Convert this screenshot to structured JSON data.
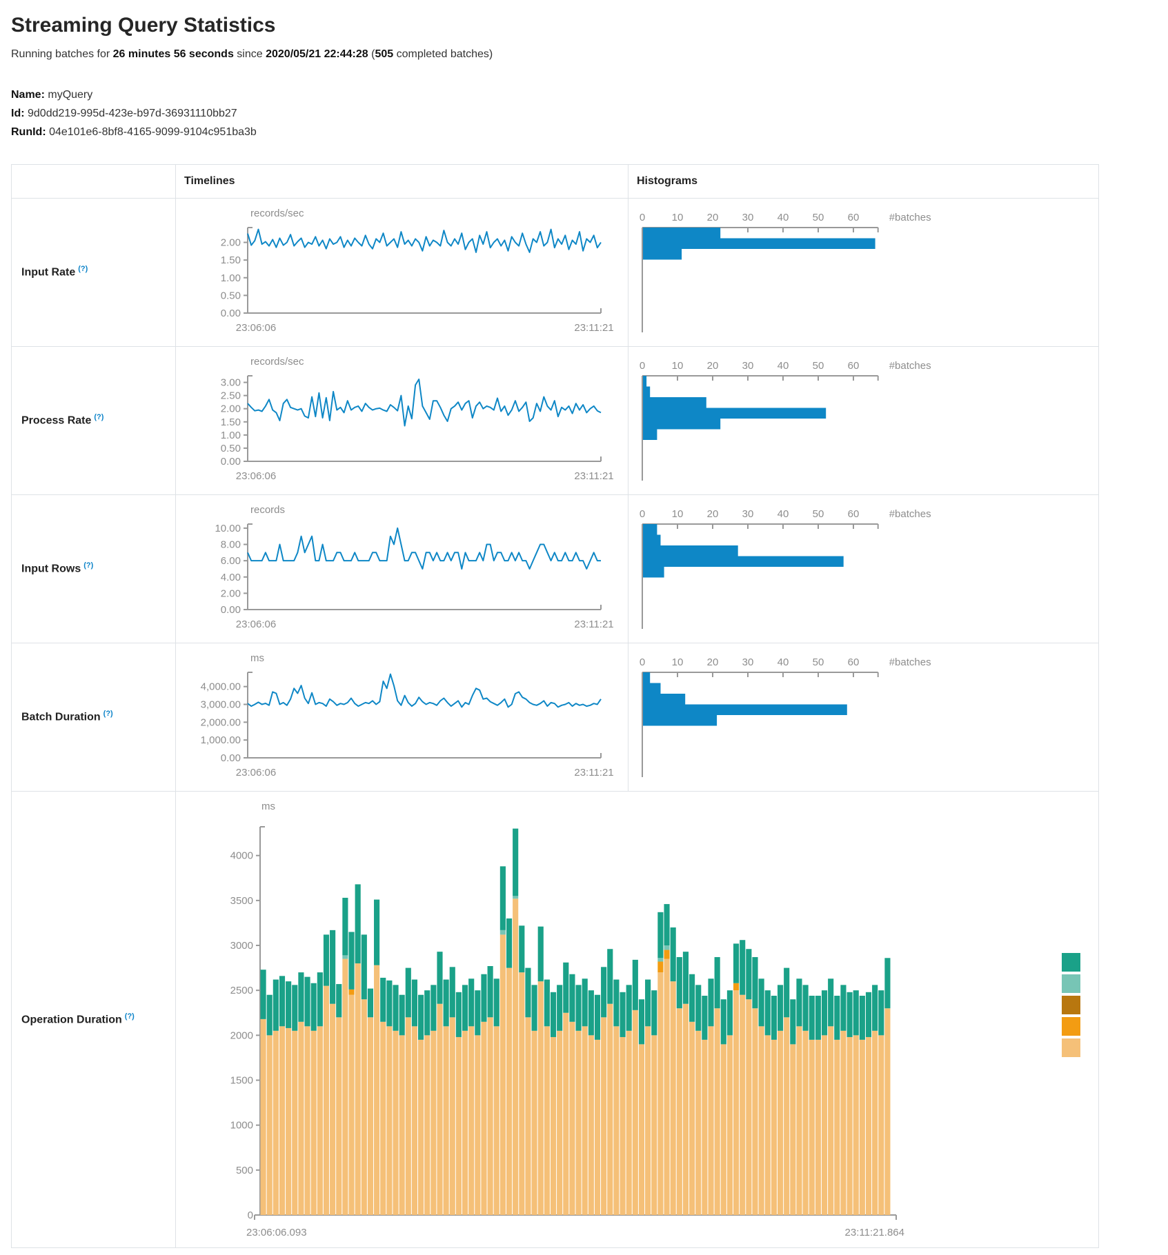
{
  "header": {
    "title": "Streaming Query Statistics",
    "running_prefix": "Running batches for ",
    "duration": "26 minutes 56 seconds",
    "since_text": " since ",
    "start_time": "2020/05/21 22:44:28",
    "paren_open": " (",
    "batches_count": "505",
    "batches_suffix": " completed batches)"
  },
  "meta": {
    "name_label": "Name:",
    "name_value": "myQuery",
    "id_label": "Id:",
    "id_value": "9d0dd219-995d-423e-b97d-36931110bb27",
    "runid_label": "RunId:",
    "runid_value": "04e101e6-8bf8-4165-9099-9104c951ba3b"
  },
  "table": {
    "col_empty": "",
    "col_timelines": "Timelines",
    "col_histograms": "Histograms",
    "help_marker": "(?)"
  },
  "rows": [
    {
      "label": "Input Rate"
    },
    {
      "label": "Process Rate"
    },
    {
      "label": "Input Rows"
    },
    {
      "label": "Batch Duration"
    },
    {
      "label": "Operation Duration"
    }
  ],
  "colors": {
    "blue": "#0e87c6",
    "axis": "#999999",
    "tick_text": "#8d8d8d",
    "teal": "#1aa188",
    "light_teal": "#77c5b5",
    "dark_orange": "#b8770f",
    "orange": "#f39c12",
    "light_orange": "#f5c078",
    "border": "#dee2e6"
  },
  "chart_data": [
    {
      "id": "input-rate-timeline",
      "type": "line",
      "unit": "records/sec",
      "ymax": 2.42,
      "y_ticks": [
        {
          "v": 2,
          "t": "2.00"
        },
        {
          "v": 1.5,
          "t": "1.50"
        },
        {
          "v": 1,
          "t": "1.00"
        },
        {
          "v": 0.5,
          "t": "0.50"
        },
        {
          "v": 0,
          "t": "0.00"
        }
      ],
      "x_labels": [
        "23:06:06",
        "23:11:21"
      ],
      "values": [
        2.25,
        1.92,
        2.05,
        2.37,
        1.95,
        2.02,
        1.9,
        2.08,
        1.86,
        2.12,
        1.92,
        2.0,
        2.22,
        1.9,
        2.02,
        2.12,
        1.86,
        2.0,
        1.95,
        2.16,
        1.9,
        2.06,
        1.82,
        2.1,
        1.95,
        2.0,
        2.16,
        1.86,
        2.06,
        1.9,
        2.12,
        2.0,
        1.9,
        2.2,
        1.95,
        1.82,
        2.1,
        2.0,
        2.26,
        1.9,
        2.0,
        2.1,
        1.86,
        2.3,
        1.95,
        2.06,
        1.9,
        2.1,
        2.0,
        1.76,
        2.16,
        1.9,
        2.06,
        2.0,
        1.9,
        2.34,
        2.0,
        1.9,
        2.1,
        1.95,
        2.26,
        1.8,
        2.0,
        2.1,
        1.72,
        2.2,
        1.95,
        2.3,
        1.85,
        2.0,
        2.1,
        1.9,
        2.06,
        1.76,
        2.16,
        2.0,
        1.9,
        2.26,
        1.95,
        1.72,
        2.1,
        2.0,
        2.3,
        1.9,
        2.0,
        2.37,
        1.85,
        2.1,
        1.95,
        2.2,
        1.8,
        2.06,
        1.95,
        2.3,
        1.76,
        2.1,
        2.0,
        2.2,
        1.85,
        2.0
      ]
    },
    {
      "id": "input-rate-histogram",
      "type": "hbar",
      "xlabel": "#batches",
      "ticks": [
        0,
        10,
        20,
        30,
        40,
        50,
        60
      ],
      "xmax": 67,
      "values": [
        22,
        66,
        11
      ]
    },
    {
      "id": "process-rate-timeline",
      "type": "line",
      "unit": "records/sec",
      "ymax": 3.25,
      "y_ticks": [
        {
          "v": 3,
          "t": "3.00"
        },
        {
          "v": 2.5,
          "t": "2.50"
        },
        {
          "v": 2,
          "t": "2.00"
        },
        {
          "v": 1.5,
          "t": "1.50"
        },
        {
          "v": 1,
          "t": "1.00"
        },
        {
          "v": 0.5,
          "t": "0.50"
        },
        {
          "v": 0,
          "t": "0.00"
        }
      ],
      "x_labels": [
        "23:06:06",
        "23:11:21"
      ],
      "values": [
        2.2,
        2.05,
        1.92,
        1.95,
        1.9,
        2.1,
        2.35,
        1.95,
        1.85,
        1.55,
        2.2,
        2.35,
        2.05,
        2.0,
        1.95,
        2.0,
        1.72,
        1.65,
        2.45,
        1.7,
        2.6,
        1.65,
        2.42,
        1.55,
        2.65,
        1.95,
        2.05,
        1.85,
        2.3,
        1.95,
        2.05,
        2.1,
        1.9,
        2.2,
        2.05,
        1.95,
        2.0,
        2.02,
        1.95,
        1.9,
        2.15,
        2.05,
        1.92,
        2.5,
        1.35,
        2.1,
        1.62,
        2.9,
        3.12,
        2.1,
        1.85,
        1.6,
        2.3,
        2.3,
        2.05,
        1.75,
        1.52,
        2.0,
        2.1,
        2.25,
        1.95,
        2.2,
        2.3,
        1.65,
        2.1,
        2.25,
        2.0,
        2.1,
        2.05,
        1.95,
        2.4,
        1.9,
        2.1,
        1.75,
        1.95,
        2.3,
        1.9,
        2.05,
        2.25,
        1.52,
        1.65,
        2.2,
        1.9,
        2.45,
        2.1,
        1.95,
        2.3,
        1.7,
        2.05,
        1.95,
        2.1,
        1.82,
        2.2,
        1.95,
        2.15,
        1.85,
        2.0,
        2.1,
        1.92,
        1.85
      ]
    },
    {
      "id": "process-rate-histogram",
      "type": "hbar",
      "xlabel": "#batches",
      "ticks": [
        0,
        10,
        20,
        30,
        40,
        50,
        60
      ],
      "xmax": 67,
      "values": [
        1,
        2,
        18,
        52,
        22,
        4
      ]
    },
    {
      "id": "input-rows-timeline",
      "type": "line",
      "unit": "records",
      "ymax": 10.5,
      "y_ticks": [
        {
          "v": 10,
          "t": "10.00"
        },
        {
          "v": 8,
          "t": "8.00"
        },
        {
          "v": 6,
          "t": "6.00"
        },
        {
          "v": 4,
          "t": "4.00"
        },
        {
          "v": 2,
          "t": "2.00"
        },
        {
          "v": 0,
          "t": "0.00"
        }
      ],
      "x_labels": [
        "23:06:06",
        "23:11:21"
      ],
      "values": [
        7,
        6,
        6,
        6,
        6,
        7,
        6,
        6,
        6,
        8,
        6,
        6,
        6,
        6,
        7,
        9,
        7,
        8,
        9,
        6,
        6,
        8,
        6,
        6,
        6,
        7,
        7,
        6,
        6,
        6,
        7,
        6,
        6,
        6,
        6,
        7,
        7,
        6,
        6,
        6,
        9,
        8,
        10,
        8,
        6,
        6,
        7,
        7,
        6,
        5,
        7,
        7,
        6,
        7,
        6,
        6,
        7,
        6,
        7,
        7,
        5,
        7,
        6,
        6,
        6,
        7,
        6,
        8,
        8,
        6,
        7,
        7,
        6,
        6,
        7,
        6,
        7,
        6,
        6,
        5,
        6,
        7,
        8,
        8,
        7,
        6,
        7,
        6,
        6,
        7,
        6,
        6,
        7,
        6,
        6,
        5,
        6,
        7,
        6,
        6
      ]
    },
    {
      "id": "input-rows-histogram",
      "type": "hbar",
      "xlabel": "#batches",
      "ticks": [
        0,
        10,
        20,
        30,
        40,
        50,
        60
      ],
      "xmax": 67,
      "values": [
        4,
        5,
        27,
        57,
        6
      ]
    },
    {
      "id": "batch-duration-timeline",
      "type": "line",
      "unit": "ms",
      "ymax": 4800,
      "y_ticks": [
        {
          "v": 4000,
          "t": "4,000.00"
        },
        {
          "v": 3000,
          "t": "3,000.00"
        },
        {
          "v": 2000,
          "t": "2,000.00"
        },
        {
          "v": 1000,
          "t": "1,000.00"
        },
        {
          "v": 0,
          "t": "0.00"
        }
      ],
      "x_labels": [
        "23:06:06",
        "23:11:21"
      ],
      "values": [
        3050,
        2900,
        3000,
        3120,
        3000,
        3060,
        2950,
        3700,
        3620,
        3000,
        3100,
        2950,
        3300,
        3900,
        3620,
        4060,
        3350,
        3050,
        3650,
        3000,
        3100,
        3050,
        2900,
        3300,
        3150,
        2950,
        3050,
        3000,
        3100,
        3350,
        3050,
        2900,
        3000,
        3100,
        3050,
        3200,
        3000,
        3150,
        4300,
        3900,
        4700,
        4050,
        3200,
        2950,
        3500,
        3100,
        2900,
        3050,
        3400,
        3150,
        3000,
        3100,
        3050,
        2950,
        3200,
        3350,
        3100,
        2900,
        3050,
        3200,
        2850,
        3100,
        3000,
        3500,
        3900,
        3800,
        3300,
        3350,
        3150,
        3050,
        2950,
        3100,
        3300,
        2850,
        3000,
        3600,
        3700,
        3400,
        3300,
        3100,
        3000,
        2950,
        3050,
        3200,
        2900,
        3100,
        3050,
        2850,
        2950,
        3000,
        3100,
        2900,
        3050,
        2950,
        3000,
        2900,
        2950,
        3050,
        3000,
        3300
      ]
    },
    {
      "id": "batch-duration-histogram",
      "type": "hbar",
      "xlabel": "#batches",
      "ticks": [
        0,
        10,
        20,
        30,
        40,
        50,
        60
      ],
      "xmax": 67,
      "values": [
        2,
        5,
        12,
        58,
        21
      ]
    },
    {
      "id": "operation-duration-stacked",
      "type": "stacked",
      "unit": "ms",
      "ymax": 4320,
      "y_ticks": [
        {
          "v": 4000,
          "t": "4000"
        },
        {
          "v": 3500,
          "t": "3500"
        },
        {
          "v": 3000,
          "t": "3000"
        },
        {
          "v": 2500,
          "t": "2500"
        },
        {
          "v": 2000,
          "t": "2000"
        },
        {
          "v": 1500,
          "t": "1500"
        },
        {
          "v": 1000,
          "t": "1000"
        },
        {
          "v": 500,
          "t": "500"
        },
        {
          "v": 0,
          "t": "0"
        }
      ],
      "x_labels": [
        "23:06:06.093",
        "23:11:21.864"
      ],
      "legend": [
        "teal",
        "light_teal",
        "dark_orange",
        "orange",
        "light_orange"
      ],
      "series": [
        {
          "name": "bottom-light-orange",
          "color": "light_orange",
          "values": [
            2180,
            2000,
            2050,
            2100,
            2080,
            2050,
            2150,
            2100,
            2050,
            2100,
            2550,
            2350,
            2200,
            2850,
            2450,
            2800,
            2400,
            2200,
            2780,
            2150,
            2100,
            2050,
            2000,
            2200,
            2100,
            1950,
            2000,
            2050,
            2350,
            2100,
            2200,
            1980,
            2050,
            2100,
            2000,
            2150,
            2200,
            2100,
            3120,
            2750,
            3520,
            2700,
            2200,
            2050,
            2600,
            2100,
            1980,
            2050,
            2250,
            2150,
            2050,
            2100,
            2000,
            1950,
            2200,
            2350,
            2100,
            1980,
            2050,
            2280,
            1900,
            2100,
            2000,
            2700,
            2850,
            2600,
            2300,
            2350,
            2150,
            2050,
            1950,
            2100,
            2300,
            1900,
            2000,
            2500,
            2450,
            2400,
            2300,
            2100,
            2000,
            1950,
            2050,
            2200,
            1900,
            2100,
            2050,
            1950,
            1950,
            2000,
            2100,
            1950,
            2050,
            1980,
            2000,
            1950,
            1980,
            2050,
            2000,
            2300
          ]
        },
        {
          "name": "mid-orange",
          "color": "orange",
          "sparse": {
            "14": 60,
            "63": 120,
            "64": 100,
            "75": 80
          }
        },
        {
          "name": "mid-dark-orange",
          "color": "dark_orange",
          "sparse": {}
        },
        {
          "name": "mid-light-teal",
          "color": "light_teal",
          "sparse": {
            "13": 40,
            "38": 50,
            "40": 30,
            "63": 40,
            "64": 50
          }
        },
        {
          "name": "top-teal",
          "color": "teal",
          "values": [
            550,
            450,
            570,
            560,
            520,
            510,
            550,
            550,
            530,
            600,
            570,
            820,
            370,
            640,
            640,
            880,
            720,
            320,
            730,
            490,
            510,
            510,
            450,
            550,
            520,
            500,
            500,
            510,
            580,
            520,
            560,
            500,
            510,
            530,
            500,
            530,
            570,
            530,
            710,
            550,
            750,
            520,
            550,
            510,
            610,
            520,
            500,
            510,
            560,
            530,
            510,
            530,
            500,
            500,
            560,
            610,
            520,
            500,
            510,
            560,
            500,
            520,
            500,
            510,
            460,
            600,
            570,
            580,
            530,
            510,
            490,
            530,
            570,
            500,
            500,
            440,
            610,
            560,
            570,
            530,
            500,
            490,
            510,
            550,
            500,
            530,
            510,
            490,
            490,
            500,
            530,
            490,
            510,
            500,
            500,
            490,
            500,
            510,
            500,
            560
          ]
        }
      ]
    }
  ]
}
